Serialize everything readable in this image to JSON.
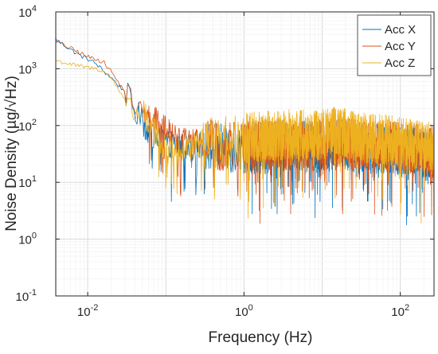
{
  "chart_data": {
    "type": "line",
    "title": "",
    "xlabel": "Frequency (Hz)",
    "ylabel": "Noise Density (µg/√Hz)",
    "xscale": "log",
    "yscale": "log",
    "xlim": [
      0.0039,
      270
    ],
    "ylim": [
      0.1,
      10000
    ],
    "grid": true,
    "minor_grid": true,
    "legend_position": "top-right",
    "x_ticks": [
      {
        "value": 0.01,
        "base": "10",
        "exp": "-2"
      },
      {
        "value": 1,
        "base": "10",
        "exp": "0"
      },
      {
        "value": 100,
        "base": "10",
        "exp": "2"
      }
    ],
    "y_ticks": [
      {
        "value": 0.1,
        "base": "10",
        "exp": "-1"
      },
      {
        "value": 1,
        "base": "10",
        "exp": "0"
      },
      {
        "value": 10,
        "base": "10",
        "exp": "1"
      },
      {
        "value": 100,
        "base": "10",
        "exp": "2"
      },
      {
        "value": 1000,
        "base": "10",
        "exp": "3"
      },
      {
        "value": 10000,
        "base": "10",
        "exp": "4"
      }
    ],
    "series": [
      {
        "name": "Acc X",
        "color": "#0072BD",
        "x": [
          0.0039,
          0.006,
          0.008,
          0.01,
          0.013,
          0.016,
          0.02,
          0.025,
          0.03,
          0.035,
          0.04,
          0.05,
          0.06,
          0.08,
          0.1,
          0.15,
          0.2,
          0.3,
          0.5,
          0.7,
          1,
          2,
          3,
          5,
          10,
          15,
          20,
          30,
          50,
          100,
          150,
          200,
          270
        ],
        "y": [
          3300,
          2200,
          1700,
          1500,
          1200,
          900,
          700,
          500,
          400,
          260,
          180,
          120,
          80,
          60,
          50,
          45,
          40,
          45,
          40,
          40,
          40,
          40,
          45,
          45,
          40,
          50,
          45,
          40,
          40,
          35,
          35,
          30,
          30
        ]
      },
      {
        "name": "Acc Y",
        "color": "#D95319",
        "x": [
          0.0039,
          0.006,
          0.008,
          0.01,
          0.013,
          0.016,
          0.02,
          0.025,
          0.03,
          0.035,
          0.04,
          0.05,
          0.06,
          0.08,
          0.1,
          0.15,
          0.2,
          0.3,
          0.5,
          0.7,
          1,
          2,
          3,
          5,
          10,
          15,
          20,
          30,
          50,
          100,
          150,
          200,
          270
        ],
        "y": [
          3000,
          2300,
          1900,
          1600,
          1500,
          1300,
          900,
          550,
          400,
          300,
          220,
          180,
          150,
          110,
          80,
          60,
          50,
          50,
          45,
          45,
          45,
          45,
          45,
          45,
          45,
          55,
          50,
          45,
          45,
          40,
          40,
          35,
          35
        ]
      },
      {
        "name": "Acc Z",
        "color": "#EDB120",
        "x": [
          0.0039,
          0.006,
          0.008,
          0.01,
          0.013,
          0.016,
          0.02,
          0.025,
          0.03,
          0.035,
          0.04,
          0.05,
          0.06,
          0.08,
          0.1,
          0.15,
          0.2,
          0.3,
          0.5,
          0.7,
          1,
          2,
          3,
          5,
          10,
          15,
          20,
          30,
          50,
          100,
          150,
          200,
          270
        ],
        "y": [
          1400,
          1200,
          1100,
          1050,
          1000,
          900,
          700,
          420,
          300,
          200,
          160,
          170,
          110,
          60,
          35,
          40,
          40,
          50,
          50,
          55,
          60,
          65,
          70,
          70,
          70,
          80,
          70,
          60,
          60,
          50,
          45,
          45,
          45
        ]
      }
    ]
  }
}
